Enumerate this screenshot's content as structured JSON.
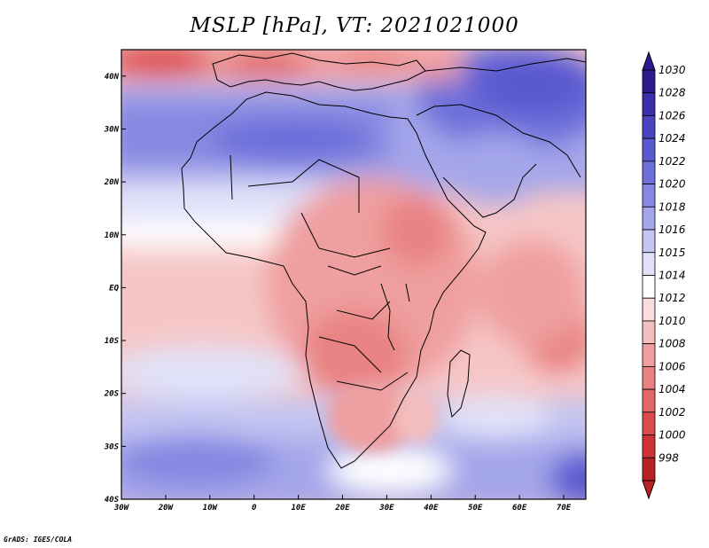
{
  "title": "MSLP [hPa], VT: 2021021000",
  "footer": "GrADS: IGES/COLA",
  "map": {
    "lon_labels": [
      "30W",
      "20W",
      "10W",
      "0",
      "10E",
      "20E",
      "30E",
      "40E",
      "50E",
      "60E",
      "70E"
    ],
    "lat_labels": [
      "40N",
      "30N",
      "20N",
      "10N",
      "EQ",
      "10S",
      "20S",
      "30S",
      "40S"
    ]
  },
  "colorbar": {
    "levels": [
      "1030",
      "1028",
      "1026",
      "1024",
      "1022",
      "1020",
      "1018",
      "1016",
      "1015",
      "1014",
      "1012",
      "1010",
      "1008",
      "1006",
      "1004",
      "1002",
      "1000",
      "998"
    ],
    "colors": [
      "#2b1b8f",
      "#3a2eab",
      "#4a44c1",
      "#5a5ad0",
      "#6d6fda",
      "#8688e2",
      "#a4a6ea",
      "#c3c5f2",
      "#e1e2f9",
      "#ffffff",
      "#fbdcdc",
      "#f5bebe",
      "#ef9f9f",
      "#e98282",
      "#e36666",
      "#dc4b4b",
      "#cf3333",
      "#b92222"
    ]
  }
}
